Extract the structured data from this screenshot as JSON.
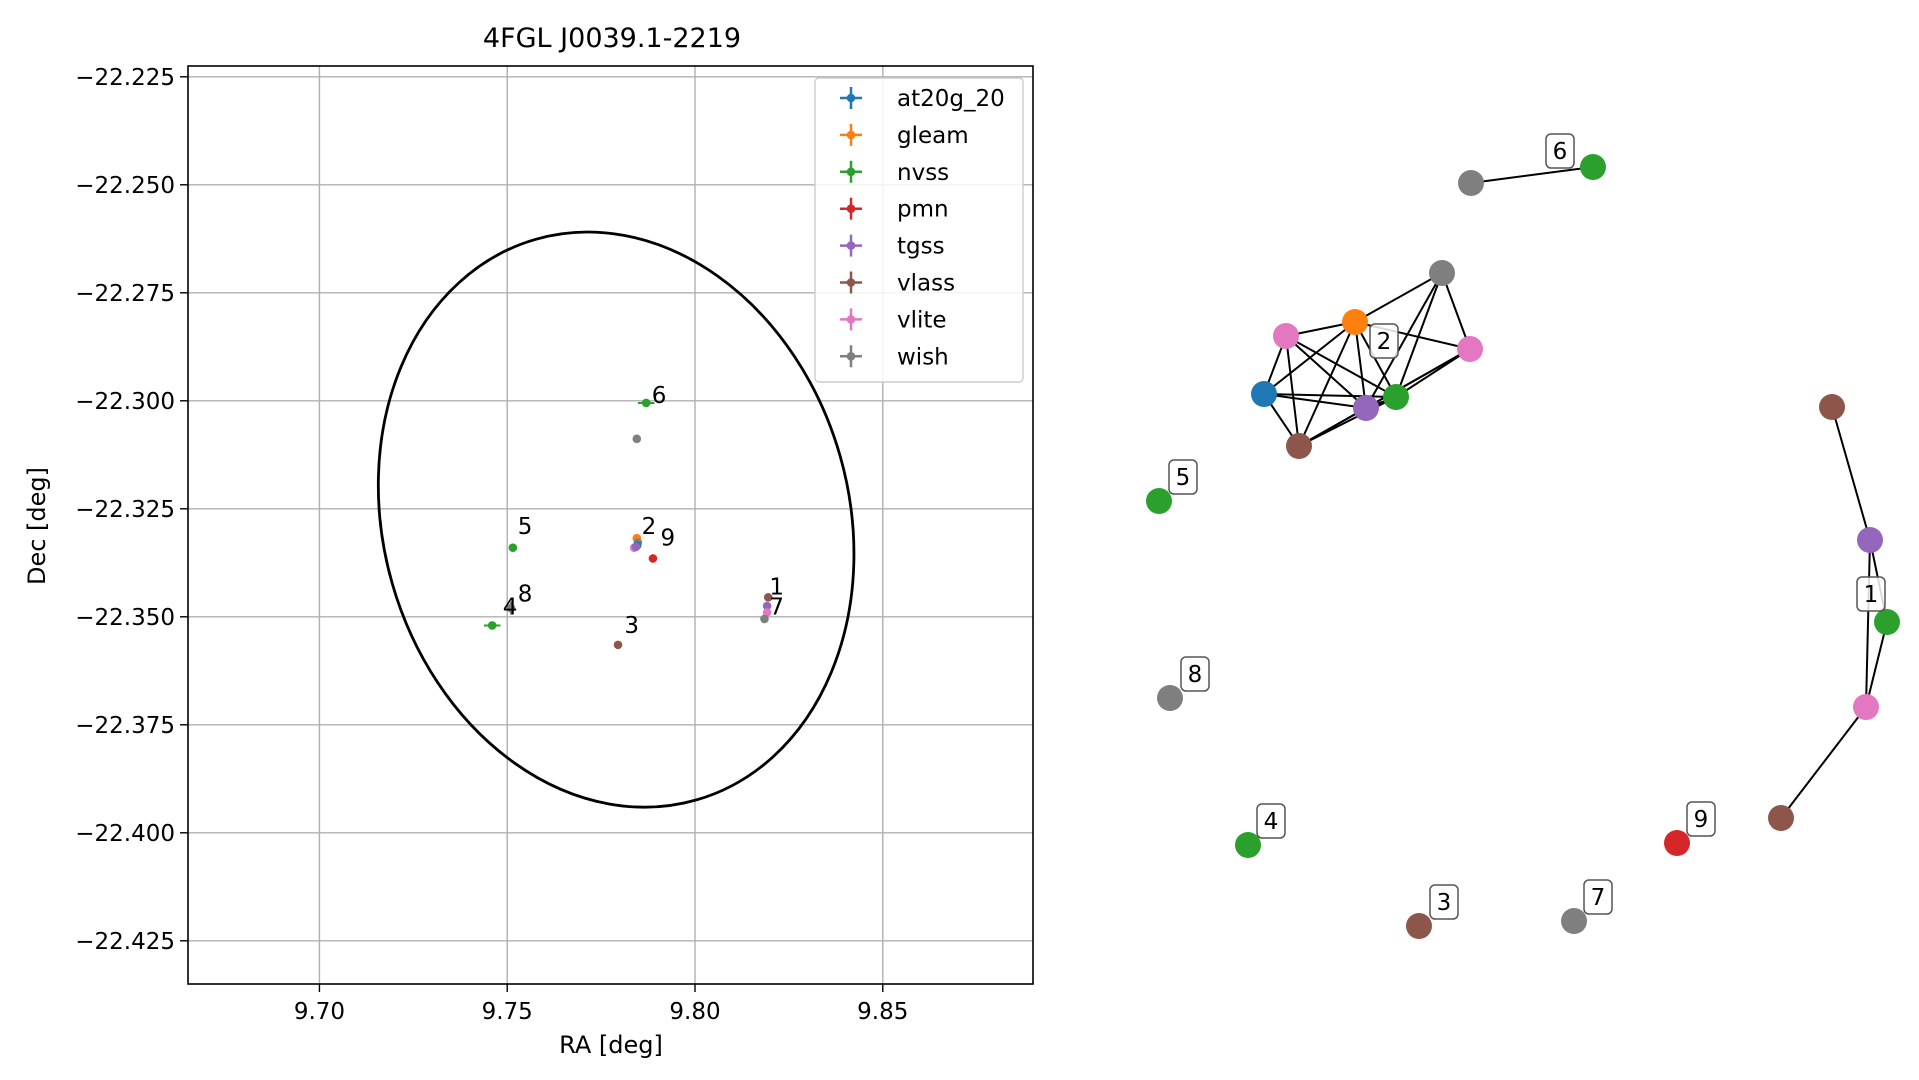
{
  "colors": {
    "at20g_20": "#1f77b4",
    "gleam": "#ff7f0e",
    "nvss": "#2ca02c",
    "pmn": "#d62728",
    "tgss": "#9467bd",
    "vlass": "#8c564b",
    "vlite": "#e377c2",
    "wish": "#7f7f7f"
  },
  "chart_data": [
    {
      "type": "scatter",
      "title": "4FGL J0039.1-2219",
      "xlabel": "RA [deg]",
      "ylabel": "Dec [deg]",
      "xlim": [
        9.665,
        9.89
      ],
      "ylim": [
        -22.435,
        -22.2225
      ],
      "xticks": [
        9.7,
        9.75,
        9.8,
        9.85
      ],
      "xtick_labels": [
        "9.70",
        "9.75",
        "9.80",
        "9.85"
      ],
      "yticks": [
        -22.225,
        -22.25,
        -22.275,
        -22.3,
        -22.325,
        -22.35,
        -22.375,
        -22.4,
        -22.425
      ],
      "ytick_labels": [
        "−22.225",
        "−22.250",
        "−22.275",
        "−22.300",
        "−22.325",
        "−22.350",
        "−22.375",
        "−22.400",
        "−22.425"
      ],
      "grid": true,
      "legend_position": "top-right",
      "legend": [
        "at20g_20",
        "gleam",
        "nvss",
        "pmn",
        "tgss",
        "vlass",
        "vlite",
        "wish"
      ],
      "ellipse": {
        "center": [
          9.779,
          -22.3275
        ],
        "ra_semi_axis": 0.062,
        "dec_semi_axis": 0.0675,
        "rotation_deg": -16
      },
      "points": [
        {
          "survey": "nvss",
          "ra": 9.787,
          "dec": -22.3005,
          "ra_err": 0.0022,
          "dec_err": 0.0005
        },
        {
          "survey": "wish",
          "ra": 9.7845,
          "dec": -22.3088,
          "ra_err": 0,
          "dec_err": 0
        },
        {
          "survey": "nvss",
          "ra": 9.7515,
          "dec": -22.334,
          "ra_err": 0,
          "dec_err": 0
        },
        {
          "survey": "gleam",
          "ra": 9.7845,
          "dec": -22.3318,
          "ra_err": 0,
          "dec_err": 0
        },
        {
          "survey": "wish",
          "ra": 9.7848,
          "dec": -22.3328,
          "ra_err": 0,
          "dec_err": 0
        },
        {
          "survey": "at20g_20",
          "ra": 9.7846,
          "dec": -22.3335,
          "ra_err": 0,
          "dec_err": 0
        },
        {
          "survey": "vlite",
          "ra": 9.7838,
          "dec": -22.334,
          "ra_err": 0.0008,
          "dec_err": 0.0004
        },
        {
          "survey": "tgss",
          "ra": 9.7843,
          "dec": -22.3338,
          "ra_err": 0,
          "dec_err": 0
        },
        {
          "survey": "pmn",
          "ra": 9.7888,
          "dec": -22.3365,
          "ra_err": 0,
          "dec_err": 0
        },
        {
          "survey": "vlass",
          "ra": 9.8195,
          "dec": -22.3455,
          "ra_err": 0,
          "dec_err": 0
        },
        {
          "survey": "tgss",
          "ra": 9.8192,
          "dec": -22.3475,
          "ra_err": 0,
          "dec_err": 0
        },
        {
          "survey": "vlite",
          "ra": 9.8192,
          "dec": -22.349,
          "ra_err": 0,
          "dec_err": 0
        },
        {
          "survey": "wish",
          "ra": 9.8185,
          "dec": -22.3505,
          "ra_err": 0,
          "dec_err": 0
        },
        {
          "survey": "wish",
          "ra": 9.751,
          "dec": -22.348,
          "ra_err": 0,
          "dec_err": 0.0015
        },
        {
          "survey": "nvss",
          "ra": 9.746,
          "dec": -22.352,
          "ra_err": 0.0022,
          "dec_err": 0.0005
        },
        {
          "survey": "vlass",
          "ra": 9.7795,
          "dec": -22.3565,
          "ra_err": 0,
          "dec_err": 0
        }
      ],
      "labels": [
        {
          "text": "1",
          "ra": 9.8198,
          "dec": -22.3448
        },
        {
          "text": "2",
          "ra": 9.7858,
          "dec": -22.3308
        },
        {
          "text": "3",
          "ra": 9.7812,
          "dec": -22.3538
        },
        {
          "text": "4",
          "ra": 9.7488,
          "dec": -22.3495
        },
        {
          "text": "5",
          "ra": 9.7528,
          "dec": -22.3308
        },
        {
          "text": "6",
          "ra": 9.7885,
          "dec": -22.3005
        },
        {
          "text": "7",
          "ra": 9.8198,
          "dec": -22.3495
        },
        {
          "text": "8",
          "ra": 9.7528,
          "dec": -22.3465
        },
        {
          "text": "9",
          "ra": 9.7908,
          "dec": -22.3335
        }
      ]
    },
    {
      "type": "network",
      "nodes": [
        {
          "id": "n6a",
          "survey": "wish"
        },
        {
          "id": "n6b",
          "survey": "nvss",
          "label": "6"
        },
        {
          "id": "n2wish",
          "survey": "wish"
        },
        {
          "id": "n2gleam",
          "survey": "gleam"
        },
        {
          "id": "n2vlite_a",
          "survey": "vlite"
        },
        {
          "id": "n2vlite_b",
          "survey": "vlite"
        },
        {
          "id": "n2at20g",
          "survey": "at20g_20"
        },
        {
          "id": "n2tgss",
          "survey": "tgss"
        },
        {
          "id": "n2nvss",
          "survey": "nvss"
        },
        {
          "id": "n2vlass",
          "survey": "vlass",
          "label": "2"
        },
        {
          "id": "n5",
          "survey": "nvss",
          "label": "5"
        },
        {
          "id": "n8",
          "survey": "wish",
          "label": "8"
        },
        {
          "id": "n4",
          "survey": "nvss",
          "label": "4"
        },
        {
          "id": "n3",
          "survey": "vlass",
          "label": "3"
        },
        {
          "id": "n7",
          "survey": "wish",
          "label": "7"
        },
        {
          "id": "n9",
          "survey": "pmn",
          "label": "9"
        },
        {
          "id": "n1vlass_a",
          "survey": "vlass"
        },
        {
          "id": "n1tgss",
          "survey": "tgss"
        },
        {
          "id": "n1nvss",
          "survey": "nvss",
          "label": "1"
        },
        {
          "id": "n1vlite",
          "survey": "vlite"
        },
        {
          "id": "n1vlass_b",
          "survey": "vlass"
        }
      ],
      "edges": [
        [
          "n6a",
          "n6b"
        ],
        [
          "n2wish",
          "n2gleam"
        ],
        [
          "n2wish",
          "n2vlite_b"
        ],
        [
          "n2wish",
          "n2tgss"
        ],
        [
          "n2wish",
          "n2nvss"
        ],
        [
          "n2gleam",
          "n2vlite_a"
        ],
        [
          "n2gleam",
          "n2at20g"
        ],
        [
          "n2gleam",
          "n2tgss"
        ],
        [
          "n2gleam",
          "n2nvss"
        ],
        [
          "n2gleam",
          "n2vlass"
        ],
        [
          "n2gleam",
          "n2vlite_b"
        ],
        [
          "n2vlite_a",
          "n2at20g"
        ],
        [
          "n2vlite_a",
          "n2tgss"
        ],
        [
          "n2vlite_a",
          "n2nvss"
        ],
        [
          "n2vlite_a",
          "n2vlass"
        ],
        [
          "n2at20g",
          "n2tgss"
        ],
        [
          "n2at20g",
          "n2nvss"
        ],
        [
          "n2at20g",
          "n2vlass"
        ],
        [
          "n2tgss",
          "n2nvss"
        ],
        [
          "n2tgss",
          "n2vlass"
        ],
        [
          "n2tgss",
          "n2vlite_b"
        ],
        [
          "n2nvss",
          "n2vlass"
        ],
        [
          "n2nvss",
          "n2vlite_b"
        ],
        [
          "n2vlass",
          "n2vlite_b"
        ],
        [
          "n1vlass_a",
          "n1tgss"
        ],
        [
          "n1tgss",
          "n1nvss"
        ],
        [
          "n1tgss",
          "n1vlite"
        ],
        [
          "n1nvss",
          "n1vlite"
        ],
        [
          "n1vlite",
          "n1vlass_b"
        ]
      ]
    }
  ]
}
